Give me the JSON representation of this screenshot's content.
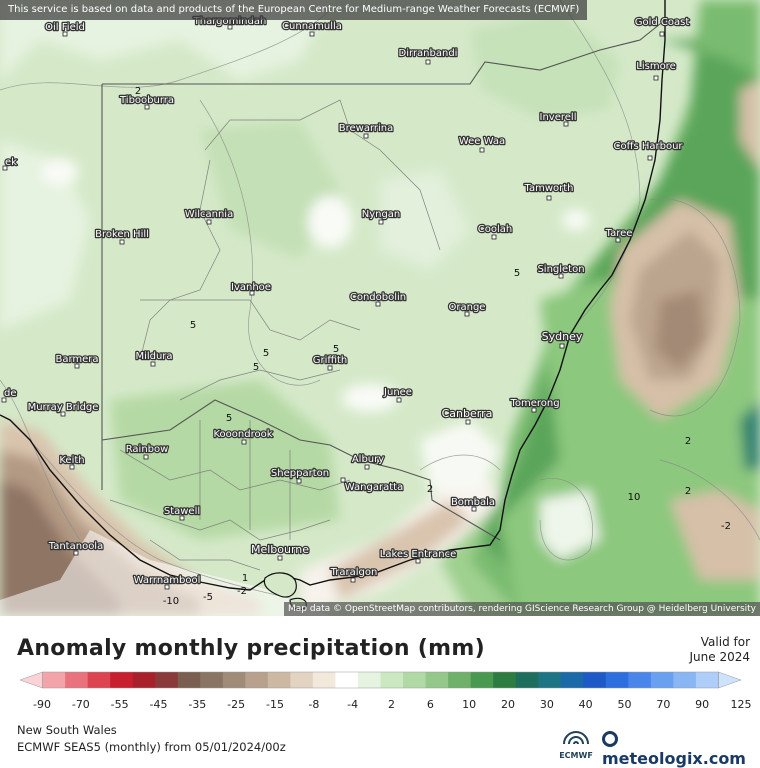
{
  "banner": "This service is based on data and products of the European Centre for Medium-range Weather Forecasts (ECMWF)",
  "map_attribution": "Map data © OpenStreetMap contributors, rendering GIScience Research Group @ Heidelberg University",
  "title": "Anomaly monthly precipitation (mm)",
  "valid_label": "Valid for",
  "valid_date": "June 2024",
  "region": "New South Wales",
  "model_run": "ECMWF SEAS5 (monthly) from 05/01/2024/00z",
  "ecmwf_label": "ECMWF",
  "brand": "meteologix.com",
  "legend": {
    "ticks": [
      "-90",
      "-70",
      "-55",
      "-45",
      "-35",
      "-25",
      "-15",
      "-8",
      "-4",
      "2",
      "6",
      "10",
      "20",
      "30",
      "40",
      "50",
      "70",
      "90",
      "125"
    ],
    "colors": [
      "#fbd2d6",
      "#f3a3aa",
      "#e8737e",
      "#dc4452",
      "#c81f2f",
      "#a8202c",
      "#8a3a3a",
      "#7a5f50",
      "#8a7565",
      "#a08a78",
      "#b8a08e",
      "#cdb8a4",
      "#e2d3c2",
      "#f2e8dc",
      "#ffffff",
      "#e6f3e0",
      "#cce8c3",
      "#b1d9a6",
      "#93c88a",
      "#6fb06a",
      "#4a9950",
      "#2d7d43",
      "#1e6e5e",
      "#1c7485",
      "#1b6aa8",
      "#1d5ac8",
      "#2e6fe0",
      "#4a86ea",
      "#6aa0f0",
      "#8ab7f4",
      "#aecdf8",
      "#cfe2fb"
    ]
  },
  "cities": [
    {
      "name": "Gold Coast"
    },
    {
      "name": "Lismore"
    },
    {
      "name": "Coffs Harbour"
    },
    {
      "name": "Inverell"
    },
    {
      "name": "Tamworth"
    },
    {
      "name": "Taree"
    },
    {
      "name": "Coolah"
    },
    {
      "name": "Singleton"
    },
    {
      "name": "Sydney"
    },
    {
      "name": "Orange"
    },
    {
      "name": "Condobolin"
    },
    {
      "name": "Nyngan"
    },
    {
      "name": "Wee Waa"
    },
    {
      "name": "Brewarrina"
    },
    {
      "name": "Dirranbandi"
    },
    {
      "name": "Cunnamulla"
    },
    {
      "name": "Thargomindah"
    },
    {
      "name": "Tibooburra"
    },
    {
      "name": "Wilcannia"
    },
    {
      "name": "Broken Hill"
    },
    {
      "name": "Ivanhoe"
    },
    {
      "name": "Mildura"
    },
    {
      "name": "Barmera"
    },
    {
      "name": "Murray Bridge"
    },
    {
      "name": "Griffith"
    },
    {
      "name": "Junee"
    },
    {
      "name": "Canberra"
    },
    {
      "name": "Tomerong"
    },
    {
      "name": "Kooondrook"
    },
    {
      "name": "Rainbow"
    },
    {
      "name": "Keith"
    },
    {
      "name": "Albury"
    },
    {
      "name": "Shepparton"
    },
    {
      "name": "Wangaratta"
    },
    {
      "name": "Bombala"
    },
    {
      "name": "Stawell"
    },
    {
      "name": "Tantanoola"
    },
    {
      "name": "Melbourne"
    },
    {
      "name": "Lakes Entrance"
    },
    {
      "name": "Traralgon"
    },
    {
      "name": "Warrnambool"
    },
    {
      "name": "Oil Field"
    },
    {
      "name": "ek"
    },
    {
      "name": "de"
    }
  ],
  "contour_labels": [
    "2",
    "5",
    "5",
    "5",
    "5",
    "5",
    "5",
    "2",
    "2",
    "2",
    "10",
    "-2",
    "-2",
    "-5",
    "-10",
    "1"
  ]
}
